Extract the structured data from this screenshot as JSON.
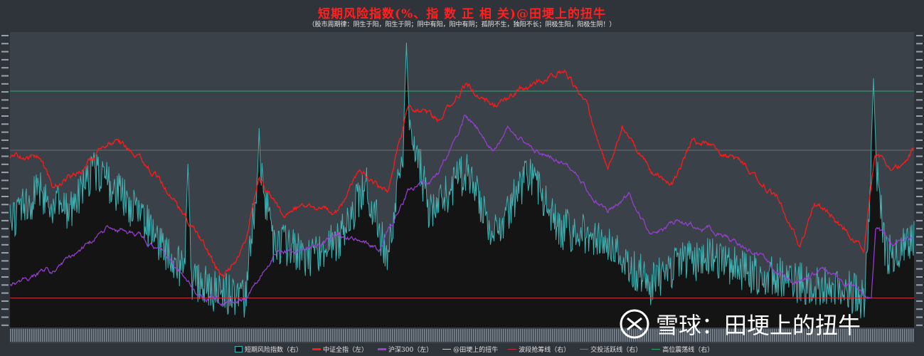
{
  "title": "短期风险指数(%、指 数 正 相 关)@田埂上的扭牛",
  "subtitle": "（股市周期律：阴生于阳，阳生于阴；阴中有阳，阳中有阴；孤阴不生，独阳不长；阴极生阳，阳极生阴！）",
  "watermark": {
    "text": "雪球：田埂上的扭牛",
    "icon": "snowball-logo-icon"
  },
  "chart_data": {
    "type": "line",
    "title": "短期风险指数(%、指 数 正 相 关)@田埂上的扭牛",
    "xlabel": "",
    "ylabel_left": "",
    "ylabel_right": "",
    "grid": false,
    "legend_position": "bottom",
    "series": [
      {
        "name": "短期风险指数（右）",
        "style": "area",
        "color": "#3fb3b3"
      },
      {
        "name": "中证全指（左）",
        "style": "line",
        "color": "#ff1a1a"
      },
      {
        "name": "沪深300（左）",
        "style": "line",
        "color": "#9b3fd6"
      },
      {
        "name": "@田埂上的扭牛",
        "style": "line",
        "color": "#cccccc"
      },
      {
        "name": "波段抢筹线（右）",
        "style": "hline",
        "color": "#c0303a",
        "value": 10
      },
      {
        "name": "交投活跃线（右）",
        "style": "hline",
        "color": "#777777",
        "value": 60
      },
      {
        "name": "高位震荡线（右）",
        "style": "hline",
        "color": "#2ea86a",
        "value": 80
      }
    ]
  }
}
